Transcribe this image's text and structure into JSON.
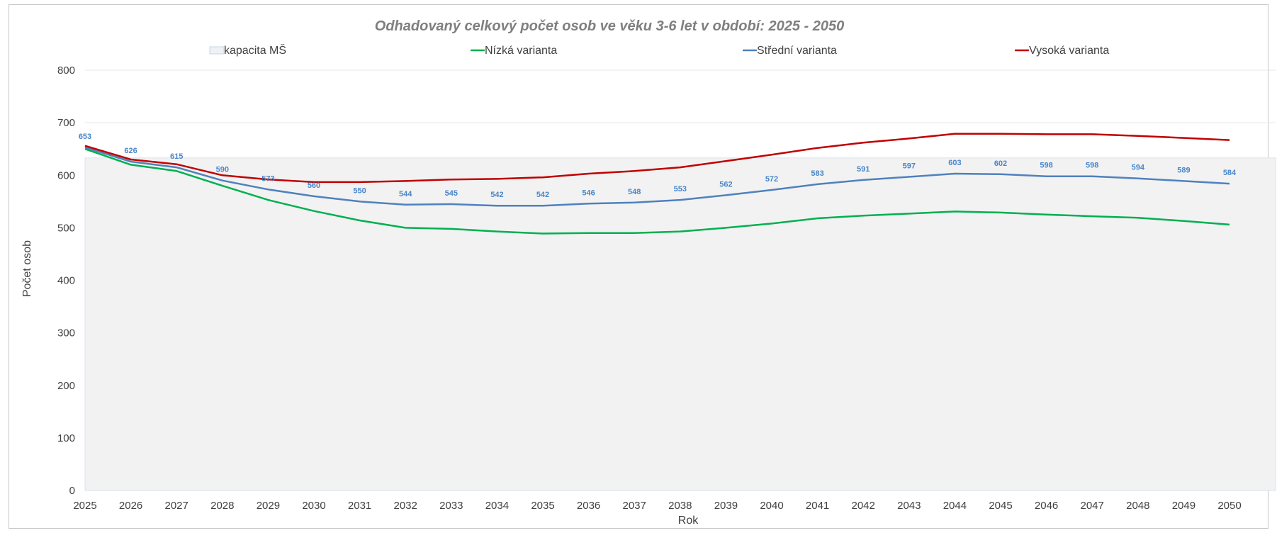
{
  "chart_data": {
    "type": "line",
    "title": "Odhadovaný celkový počet osob ve věku 3-6 let  v období: 2025 - 2050",
    "xlabel": "Rok",
    "ylabel": "Počet osob",
    "ylim": [
      0,
      800
    ],
    "yticks": [
      0,
      100,
      200,
      300,
      400,
      500,
      600,
      700,
      800
    ],
    "grid": true,
    "legend_position": "top",
    "categories": [
      "2025",
      "2026",
      "2027",
      "2028",
      "2029",
      "2030",
      "2031",
      "2032",
      "2033",
      "2034",
      "2035",
      "2036",
      "2037",
      "2038",
      "2039",
      "2040",
      "2041",
      "2042",
      "2043",
      "2044",
      "2045",
      "2046",
      "2047",
      "2048",
      "2049",
      "2050"
    ],
    "area": {
      "name": "kapacita MŠ",
      "value": 633,
      "fill": "#f2f2f2",
      "stroke": "#d9e3f0"
    },
    "series": [
      {
        "name": "Nízká varianta",
        "color": "#00b050",
        "values": [
          650,
          620,
          608,
          580,
          553,
          532,
          514,
          500,
          498,
          493,
          489,
          490,
          490,
          493,
          500,
          508,
          518,
          523,
          527,
          531,
          529,
          525,
          522,
          519,
          513,
          506
        ]
      },
      {
        "name": "Střední varianta",
        "color": "#4f81bd",
        "labels": true,
        "values": [
          653,
          626,
          615,
          590,
          573,
          560,
          550,
          544,
          545,
          542,
          542,
          546,
          548,
          553,
          562,
          572,
          583,
          591,
          597,
          603,
          602,
          598,
          598,
          594,
          589,
          584
        ]
      },
      {
        "name": "Vysoká varianta",
        "color": "#c00000",
        "values": [
          656,
          630,
          621,
          600,
          592,
          587,
          587,
          589,
          592,
          593,
          596,
          603,
          608,
          615,
          627,
          639,
          652,
          662,
          670,
          679,
          679,
          678,
          678,
          675,
          671,
          667
        ]
      }
    ]
  }
}
